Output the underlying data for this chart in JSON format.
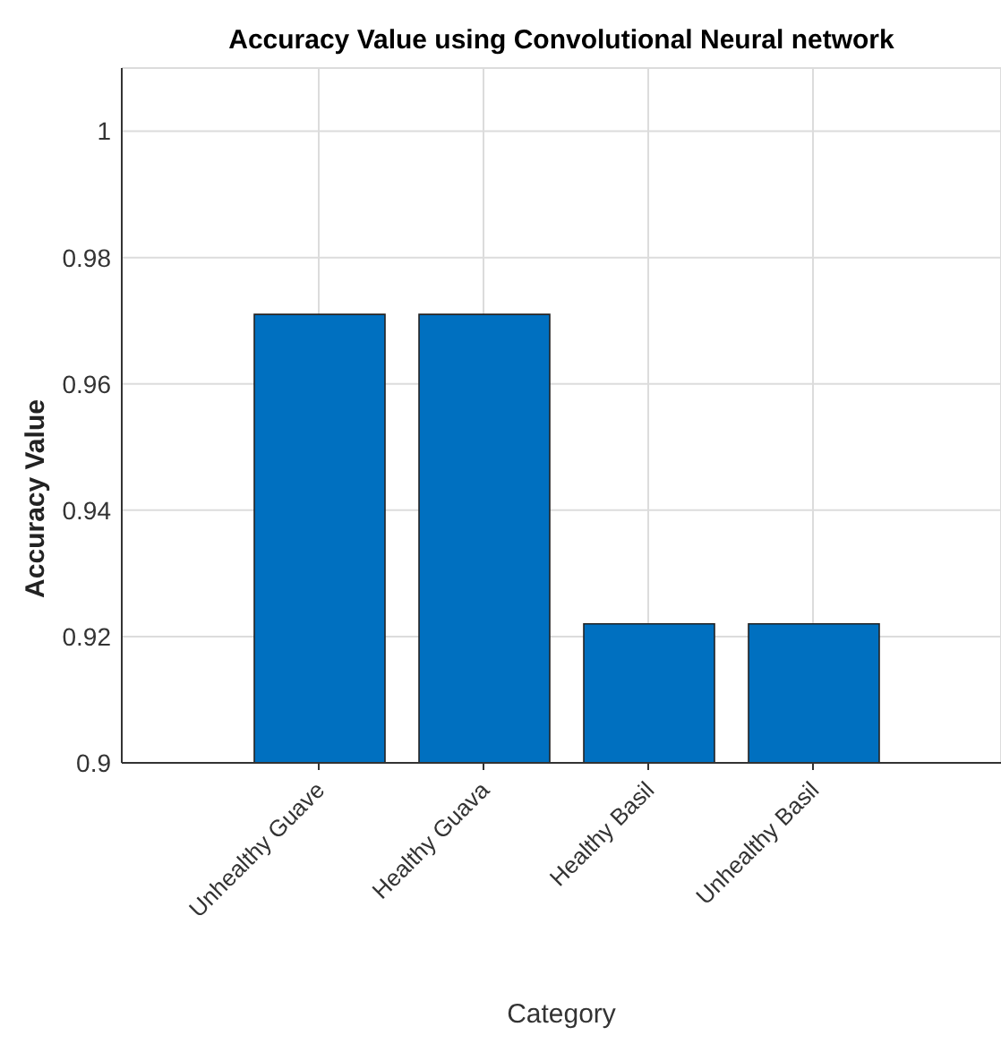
{
  "chart_data": {
    "type": "bar",
    "title": "Accuracy Value using Convolutional Neural network",
    "xlabel": "Category",
    "ylabel": "Accuracy Value",
    "categories": [
      "Unhealthy Guave",
      "Healthy Guava",
      "Healthy Basil",
      "Unhealthy Basil"
    ],
    "values": [
      0.971,
      0.971,
      0.922,
      0.922
    ],
    "color": "#0070c0",
    "ylim": [
      0.9,
      1.01
    ],
    "yticks": [
      0.9,
      0.92,
      0.94,
      0.96,
      0.98,
      1
    ],
    "grid": true,
    "legend": false
  }
}
